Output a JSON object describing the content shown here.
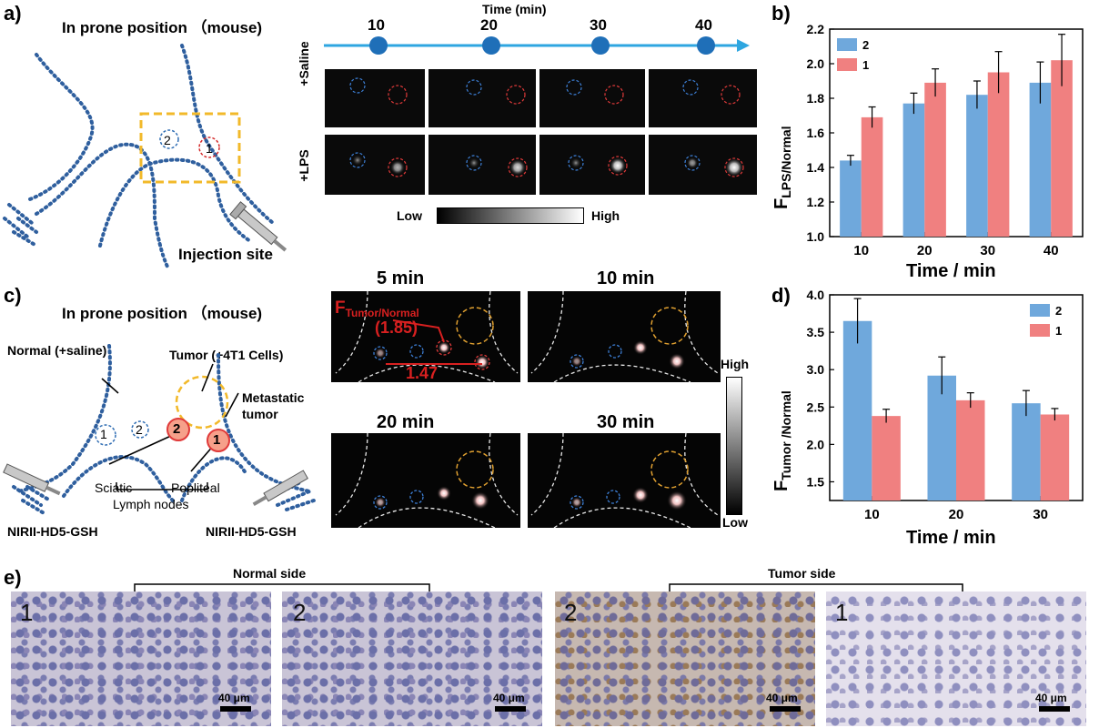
{
  "panel_a": {
    "label": "a)",
    "title": "In prone position （mouse)",
    "site_1": "1",
    "site_2": "2",
    "injection_site": "Injection site",
    "timeline_title": "Time (min)",
    "timeline_ticks": [
      "10",
      "20",
      "30",
      "40"
    ],
    "row_labels": [
      "+Saline",
      "+LPS"
    ],
    "colorbar_low": "Low",
    "colorbar_high": "High"
  },
  "panel_b": {
    "label": "b)",
    "chart_data": {
      "type": "bar",
      "categories": [
        "10",
        "20",
        "30",
        "40"
      ],
      "series": [
        {
          "name": "2",
          "color": "#6fa8dc",
          "values": [
            1.44,
            1.77,
            1.82,
            1.89
          ],
          "errors": [
            0.03,
            0.06,
            0.08,
            0.12
          ]
        },
        {
          "name": "1",
          "color": "#f08080",
          "values": [
            1.69,
            1.89,
            1.95,
            2.02
          ],
          "errors": [
            0.06,
            0.08,
            0.12,
            0.15
          ]
        }
      ],
      "xlabel": "Time / min",
      "ylabel_main": "F",
      "ylabel_sub": "LPS/Normal",
      "ylim": [
        1.0,
        2.2
      ],
      "yticks": [
        "1.0",
        "1.2",
        "1.4",
        "1.6",
        "1.8",
        "2.0",
        "2.2"
      ],
      "legend_position": "top-left"
    }
  },
  "panel_c": {
    "label": "c)",
    "title": "In prone position （mouse)",
    "normal_label": "Normal (+saline)",
    "tumor_label": "Tumor (+4T1 Cells)",
    "metastatic_label": "Metastatic tumor",
    "sciatic": "Sciatic",
    "popliteal": "Popliteal",
    "lymph_nodes": "Lymph nodes",
    "probe_left": "NIRII-HD5-GSH",
    "probe_right": "NIRII-HD5-GSH",
    "node_1": "1",
    "node_2": "2",
    "image_titles": [
      "5 min",
      "10 min",
      "20 min",
      "30 min"
    ],
    "ratio_label_main": "F",
    "ratio_label_sub": "Tumor/Normal",
    "ratio_value_1": "(1.85)",
    "ratio_value_2": "1.47",
    "colorbar_high": "High",
    "colorbar_low": "Low"
  },
  "panel_d": {
    "label": "d)",
    "chart_data": {
      "type": "bar",
      "categories": [
        "10",
        "20",
        "30"
      ],
      "series": [
        {
          "name": "2",
          "color": "#6fa8dc",
          "values": [
            3.65,
            2.92,
            2.55
          ],
          "errors": [
            0.3,
            0.25,
            0.17
          ]
        },
        {
          "name": "1",
          "color": "#f08080",
          "values": [
            2.38,
            2.59,
            2.4
          ],
          "errors": [
            0.09,
            0.1,
            0.08
          ]
        }
      ],
      "xlabel": "Time / min",
      "ylabel_main": "F",
      "ylabel_sub": "Tumor /Normal",
      "ylim": [
        1.25,
        4.0
      ],
      "yticks": [
        "1.5",
        "2.0",
        "2.5",
        "3.0",
        "3.5",
        "4.0"
      ],
      "legend_position": "top-right"
    }
  },
  "panel_e": {
    "label": "e)",
    "normal_side": "Normal side",
    "tumor_side": "Tumor side",
    "panels": [
      {
        "num": "1",
        "scale": "40 μm"
      },
      {
        "num": "2",
        "scale": "40 μm"
      },
      {
        "num": "2",
        "scale": "40 μm"
      },
      {
        "num": "1",
        "scale": "40 μm"
      }
    ]
  }
}
